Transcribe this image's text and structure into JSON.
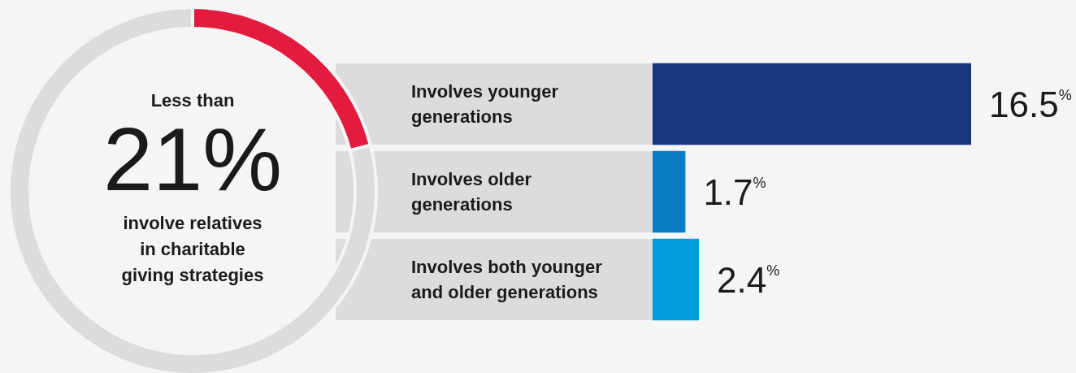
{
  "chart_data": [
    {
      "type": "donut",
      "categories": [
        null,
        null
      ],
      "values": [
        21,
        79
      ],
      "colors": [
        "#e31b3f",
        "#dcdcde"
      ],
      "annotations": [
        "Less than",
        "21%",
        "involve relatives\nin charitable\ngiving strategies"
      ]
    },
    {
      "type": "bar",
      "orientation": "horizontal",
      "categories": [
        "Involves younger generations",
        "Involves older generations",
        "Involves both younger and older generations"
      ],
      "values": [
        16.5,
        1.7,
        2.4
      ],
      "colors": [
        "#18377e",
        "#0a7cc4",
        "#009ddc"
      ],
      "value_labels": [
        "16.5%",
        "1.7%",
        "2.4%"
      ]
    }
  ]
}
